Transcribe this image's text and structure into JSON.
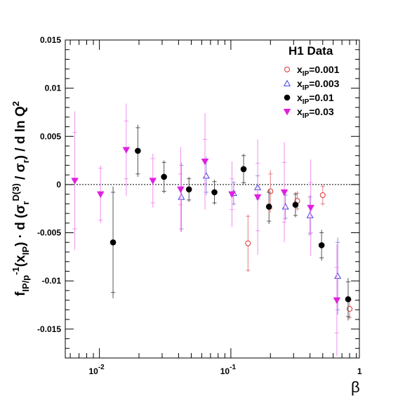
{
  "chart_data": {
    "type": "scatter",
    "title": "H1 Data",
    "xlabel": "β",
    "ylabel": "f_IP/p^-1(x_IP) · d(σ_r^D(3) / σ_r) / d ln Q^2",
    "xscale": "log",
    "xlim": [
      0.0055,
      0.95
    ],
    "ylim": [
      -0.018,
      0.015
    ],
    "y_ticks": [
      -0.015,
      -0.01,
      -0.005,
      0,
      0.005,
      0.01,
      0.015
    ],
    "y_tick_labels": [
      "-0.015",
      "-0.01",
      "-0.005",
      "0",
      "0.005",
      "0.01",
      "0.015"
    ],
    "x_tick_labels": [
      {
        "value": 0.01,
        "base": "10",
        "exp": "-2"
      },
      {
        "value": 0.1,
        "base": "10",
        "exp": "-1"
      },
      {
        "value": 1,
        "base": "1",
        "exp": ""
      }
    ],
    "zero_line": true,
    "legend_position": "top-right",
    "series": [
      {
        "name": "x_IP=0.001",
        "label_main": "x",
        "label_sub": "IP",
        "label_rest": "=0.001",
        "marker": "open-circle",
        "color": "#e03030",
        "points": [
          {
            "x": 0.135,
            "y": -0.0061,
            "err_stat": 0.0028,
            "err_tot": 0.003
          },
          {
            "x": 0.2,
            "y": -0.0007,
            "err_stat": 0.0018,
            "err_tot": 0.0022
          },
          {
            "x": 0.32,
            "y": -0.0017,
            "err_stat": 0.0008,
            "err_tot": 0.001
          },
          {
            "x": 0.5,
            "y": -0.0011,
            "err_stat": 0.0009,
            "err_tot": 0.0011
          },
          {
            "x": 0.8,
            "y": -0.0129,
            "err_stat": 0.0009,
            "err_tot": 0.0011
          }
        ]
      },
      {
        "name": "x_IP=0.003",
        "label_main": "x",
        "label_sub": "IP",
        "label_rest": "=0.003",
        "marker": "open-triangle",
        "color": "#4040e0",
        "points": [
          {
            "x": 0.042,
            "y": -0.0013,
            "err_stat": 0.0033,
            "err_tot": 0.0036
          },
          {
            "x": 0.065,
            "y": 0.0009,
            "err_stat": 0.0017,
            "err_tot": 0.002
          },
          {
            "x": 0.105,
            "y": -0.0009,
            "err_stat": 0.0011,
            "err_tot": 0.0013
          },
          {
            "x": 0.16,
            "y": -0.0003,
            "err_stat": 0.0012,
            "err_tot": 0.0014
          },
          {
            "x": 0.26,
            "y": -0.0023,
            "err_stat": 0.0012,
            "err_tot": 0.0014
          },
          {
            "x": 0.4,
            "y": -0.0032,
            "err_stat": 0.0019,
            "err_tot": 0.0021
          },
          {
            "x": 0.65,
            "y": -0.0095,
            "err_stat": 0.0035,
            "err_tot": 0.004
          }
        ]
      },
      {
        "name": "x_IP=0.01",
        "label_main": "x",
        "label_sub": "IP",
        "label_rest": "=0.01",
        "marker": "filled-circle",
        "color": "#000000",
        "points": [
          {
            "x": 0.0127,
            "y": -0.006,
            "err_stat": 0.0052,
            "err_tot": 0.0058
          },
          {
            "x": 0.0196,
            "y": 0.0035,
            "err_stat": 0.0024,
            "err_tot": 0.0027
          },
          {
            "x": 0.031,
            "y": 0.0008,
            "err_stat": 0.0015,
            "err_tot": 0.0017
          },
          {
            "x": 0.048,
            "y": -0.0005,
            "err_stat": 0.0011,
            "err_tot": 0.0013
          },
          {
            "x": 0.075,
            "y": -0.0008,
            "err_stat": 0.0011,
            "err_tot": 0.0013
          },
          {
            "x": 0.125,
            "y": 0.0016,
            "err_stat": 0.0014,
            "err_tot": 0.0016
          },
          {
            "x": 0.195,
            "y": -0.0023,
            "err_stat": 0.0015,
            "err_tot": 0.0018
          },
          {
            "x": 0.31,
            "y": -0.0021,
            "err_stat": 0.0011,
            "err_tot": 0.0013
          },
          {
            "x": 0.49,
            "y": -0.0063,
            "err_stat": 0.0013,
            "err_tot": 0.0016
          },
          {
            "x": 0.78,
            "y": -0.0119,
            "err_stat": 0.0018,
            "err_tot": 0.0022
          }
        ]
      },
      {
        "name": "x_IP=0.03",
        "label_main": "x",
        "label_sub": "IP",
        "label_rest": "=0.03",
        "marker": "filled-triangle-down",
        "color": "#e020e0",
        "points": [
          {
            "x": 0.0065,
            "y": 0.0004,
            "err_stat": 0.005,
            "err_tot": 0.0072
          },
          {
            "x": 0.0102,
            "y": -0.001,
            "err_stat": 0.0027,
            "err_tot": 0.003
          },
          {
            "x": 0.016,
            "y": 0.0036,
            "err_stat": 0.003,
            "err_tot": 0.0048
          },
          {
            "x": 0.0255,
            "y": 0.0004,
            "err_stat": 0.0023,
            "err_tot": 0.0028
          },
          {
            "x": 0.0415,
            "y": -0.0005,
            "err_stat": 0.0016,
            "err_tot": 0.0044
          },
          {
            "x": 0.0635,
            "y": 0.0024,
            "err_stat": 0.0023,
            "err_tot": 0.005
          },
          {
            "x": 0.102,
            "y": -0.001,
            "err_stat": 0.0016,
            "err_tot": 0.0034
          },
          {
            "x": 0.16,
            "y": -0.0013,
            "err_stat": 0.0035,
            "err_tot": 0.006
          },
          {
            "x": 0.255,
            "y": -0.0008,
            "err_stat": 0.0031,
            "err_tot": 0.0052
          },
          {
            "x": 0.405,
            "y": -0.0024,
            "err_stat": 0.0026,
            "err_tot": 0.005
          },
          {
            "x": 0.64,
            "y": -0.012,
            "err_stat": 0.0034,
            "err_tot": 0.0058
          }
        ]
      }
    ]
  }
}
